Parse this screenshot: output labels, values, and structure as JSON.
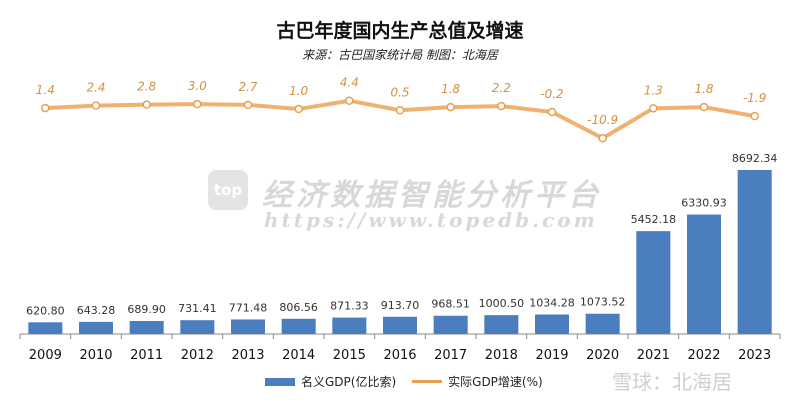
{
  "chart_data": {
    "type": "bar+line",
    "title": "古巴年度国内生产总值及增速",
    "subtitle": "来源：古巴国家统计局 制图：北海居",
    "categories": [
      "2009",
      "2010",
      "2011",
      "2012",
      "2013",
      "2014",
      "2015",
      "2016",
      "2017",
      "2018",
      "2019",
      "2020",
      "2021",
      "2022",
      "2023"
    ],
    "series": [
      {
        "name": "名义GDP(亿比索)",
        "type": "bar",
        "color": "#4a7ebf",
        "values": [
          620.8,
          643.28,
          689.9,
          731.41,
          771.48,
          806.56,
          871.33,
          913.7,
          968.51,
          1000.5,
          1034.28,
          1073.52,
          5452.18,
          6330.93,
          8692.34
        ],
        "labels": [
          "620.80",
          "643.28",
          "689.90",
          "731.41",
          "771.48",
          "806.56",
          "871.33",
          "913.70",
          "968.51",
          "1000.50",
          "1034.28",
          "1073.52",
          "5452.18",
          "6330.93",
          "8692.34"
        ]
      },
      {
        "name": "实际GDP增速(%)",
        "type": "line",
        "color": "#e8a050",
        "values": [
          1.4,
          2.4,
          2.8,
          3.0,
          2.7,
          1.0,
          4.4,
          0.5,
          1.8,
          2.2,
          -0.2,
          -10.9,
          1.3,
          1.8,
          -1.9
        ],
        "labels": [
          "1.4",
          "2.4",
          "2.8",
          "3.0",
          "2.7",
          "1.0",
          "4.4",
          "0.5",
          "1.8",
          "2.2",
          "-0.2",
          "-10.9",
          "1.3",
          "1.8",
          "-1.9"
        ]
      }
    ],
    "legend": "bottom",
    "grid": false
  },
  "watermarks": {
    "logo": "top",
    "platform": "经济数据智能分析平台",
    "url": "https://www.topedb.com",
    "xueqiu": "雪球：北海居"
  }
}
